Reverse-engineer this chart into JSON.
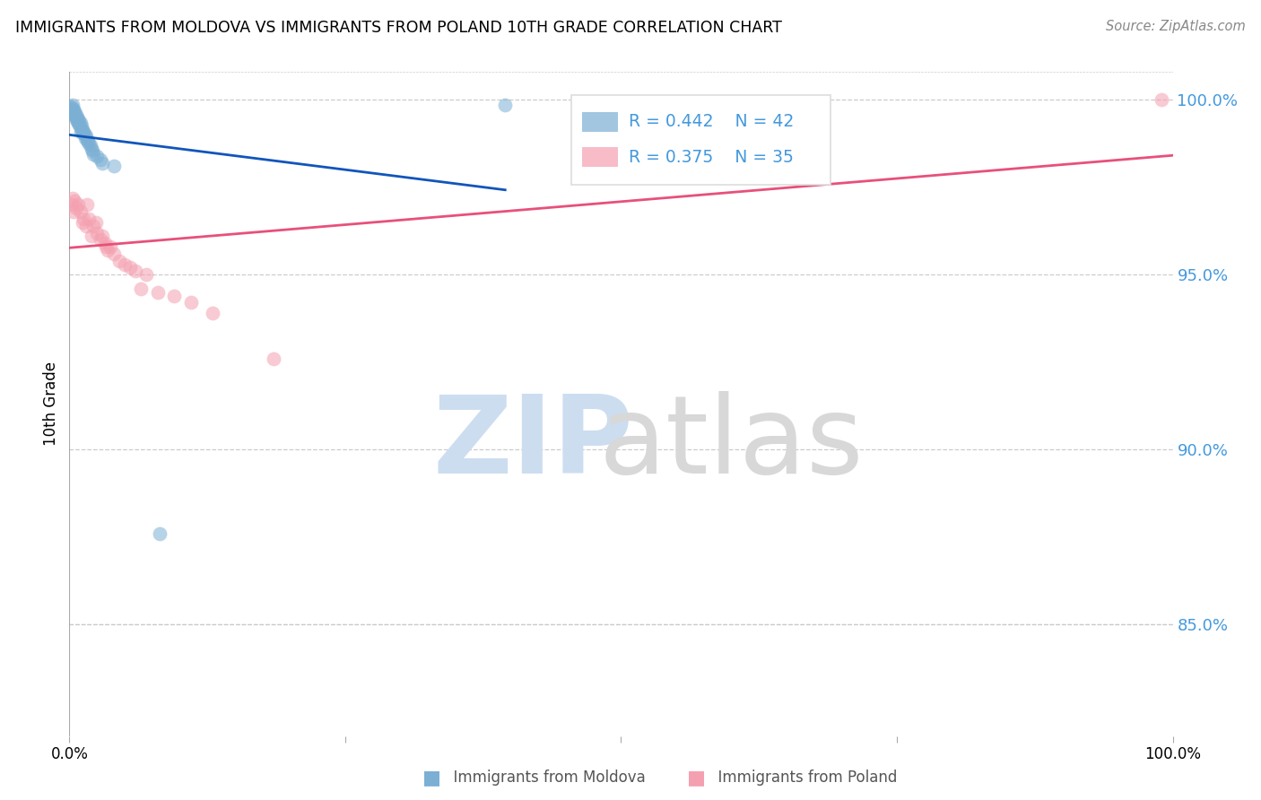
{
  "title": "IMMIGRANTS FROM MOLDOVA VS IMMIGRANTS FROM POLAND 10TH GRADE CORRELATION CHART",
  "source": "Source: ZipAtlas.com",
  "ylabel": "10th Grade",
  "ytick_labels": [
    "100.0%",
    "95.0%",
    "90.0%",
    "85.0%"
  ],
  "ytick_values": [
    1.0,
    0.95,
    0.9,
    0.85
  ],
  "xmin": 0.0,
  "xmax": 1.0,
  "ymin": 0.818,
  "ymax": 1.008,
  "legend_r1": "R = 0.442",
  "legend_n1": "N = 42",
  "legend_r2": "R = 0.375",
  "legend_n2": "N = 35",
  "color_moldova": "#7BAFD4",
  "color_poland": "#F4A0B0",
  "color_line_moldova": "#1155BB",
  "color_line_poland": "#E8507A",
  "color_ytick_labels": "#4499DD",
  "moldova_x": [
    0.0,
    0.0,
    0.002,
    0.002,
    0.003,
    0.003,
    0.004,
    0.004,
    0.005,
    0.005,
    0.005,
    0.006,
    0.006,
    0.007,
    0.007,
    0.008,
    0.008,
    0.009,
    0.009,
    0.01,
    0.01,
    0.01,
    0.011,
    0.012,
    0.012,
    0.013,
    0.014,
    0.014,
    0.015,
    0.016,
    0.017,
    0.018,
    0.019,
    0.02,
    0.021,
    0.022,
    0.025,
    0.028,
    0.03,
    0.04,
    0.082,
    0.395
  ],
  "moldova_y": [
    0.998,
    0.997,
    0.998,
    0.9975,
    0.9985,
    0.996,
    0.9972,
    0.9965,
    0.9968,
    0.996,
    0.9955,
    0.9958,
    0.9945,
    0.995,
    0.994,
    0.9945,
    0.9935,
    0.994,
    0.993,
    0.9935,
    0.992,
    0.991,
    0.9925,
    0.9915,
    0.9905,
    0.991,
    0.99,
    0.989,
    0.9895,
    0.9885,
    0.988,
    0.9875,
    0.987,
    0.986,
    0.9855,
    0.9845,
    0.984,
    0.983,
    0.982,
    0.981,
    0.876,
    0.9985
  ],
  "poland_x": [
    0.002,
    0.003,
    0.004,
    0.005,
    0.006,
    0.008,
    0.01,
    0.012,
    0.013,
    0.015,
    0.016,
    0.018,
    0.02,
    0.022,
    0.024,
    0.025,
    0.028,
    0.03,
    0.032,
    0.033,
    0.035,
    0.037,
    0.04,
    0.045,
    0.05,
    0.055,
    0.06,
    0.065,
    0.07,
    0.08,
    0.095,
    0.11,
    0.13,
    0.185,
    0.99
  ],
  "poland_y": [
    0.97,
    0.972,
    0.968,
    0.971,
    0.969,
    0.97,
    0.968,
    0.965,
    0.966,
    0.964,
    0.97,
    0.966,
    0.961,
    0.964,
    0.965,
    0.962,
    0.96,
    0.961,
    0.959,
    0.958,
    0.957,
    0.958,
    0.956,
    0.954,
    0.953,
    0.952,
    0.951,
    0.946,
    0.95,
    0.945,
    0.944,
    0.942,
    0.939,
    0.926,
    1.0
  ]
}
